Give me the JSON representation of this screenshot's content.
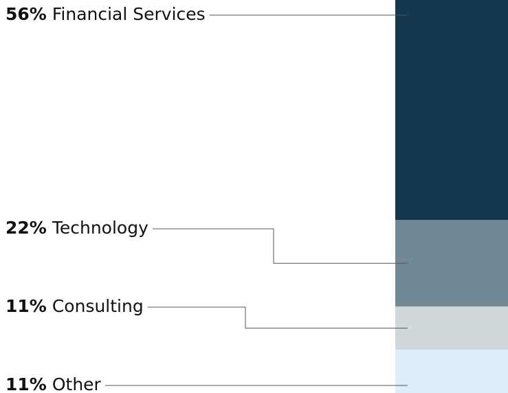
{
  "chart_data": {
    "type": "bar",
    "stacked": true,
    "categories": [
      "Financial Services",
      "Technology",
      "Consulting",
      "Other"
    ],
    "values": [
      56,
      22,
      11,
      11
    ],
    "value_labels": [
      "56%",
      "22%",
      "11%",
      "11%"
    ],
    "colors": [
      "#14384d",
      "#718896",
      "#d0d8dc",
      "#dbeef9"
    ]
  }
}
